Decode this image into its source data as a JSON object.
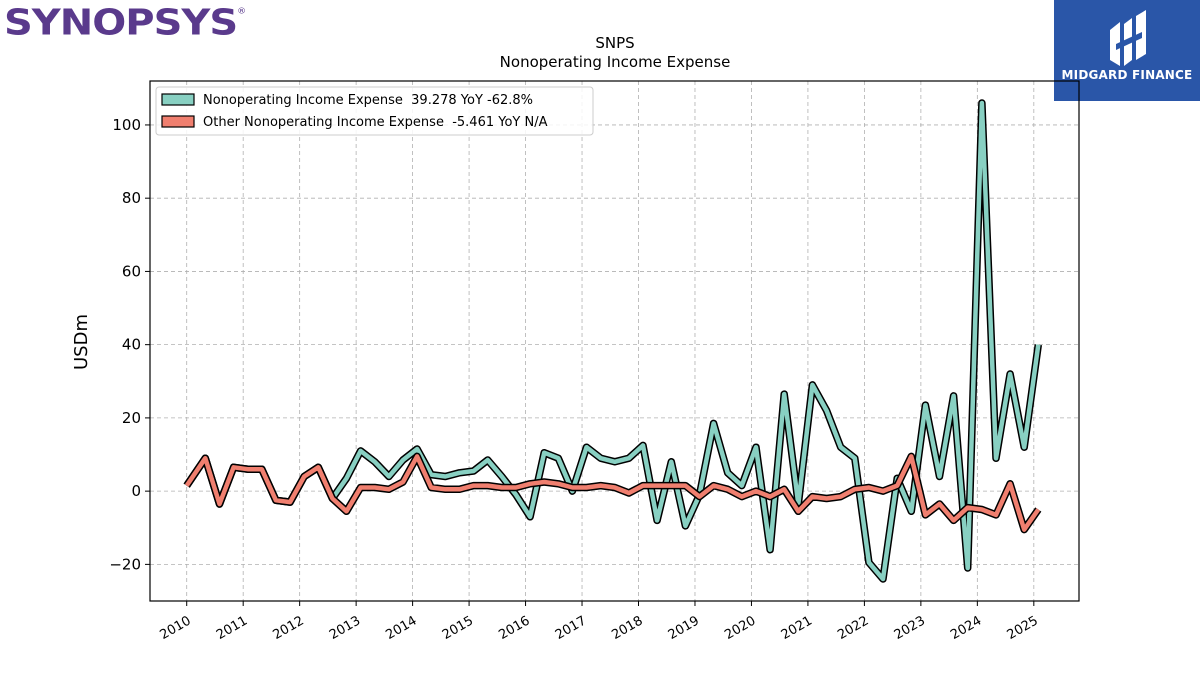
{
  "brand": {
    "left_logo": "SYNOPSYS",
    "left_logo_mark": "®",
    "right_logo": "MIDGARD FINANCE"
  },
  "chart_data": {
    "type": "line",
    "title": "SNPS",
    "subtitle": "Nonoperating Income Expense",
    "ylabel": "USDm",
    "xlabel": "",
    "ylim": [
      -30,
      112
    ],
    "xlim": [
      2009.35,
      2025.8
    ],
    "yticks": [
      -20,
      0,
      20,
      40,
      60,
      80,
      100
    ],
    "ytick_labels": [
      "−20",
      "0",
      "20",
      "40",
      "60",
      "80",
      "100"
    ],
    "xticks": [
      2010,
      2011,
      2012,
      2013,
      2014,
      2015,
      2016,
      2017,
      2018,
      2019,
      2020,
      2021,
      2022,
      2023,
      2024,
      2025
    ],
    "xtick_labels": [
      "2010",
      "2011",
      "2012",
      "2013",
      "2014",
      "2015",
      "2016",
      "2017",
      "2018",
      "2019",
      "2020",
      "2021",
      "2022",
      "2023",
      "2024",
      "2025"
    ],
    "grid": true,
    "legend_position": "top-left",
    "x": [
      2010.0,
      2010.33,
      2010.58,
      2010.83,
      2011.08,
      2011.33,
      2011.58,
      2011.83,
      2012.08,
      2012.33,
      2012.58,
      2012.83,
      2013.08,
      2013.33,
      2013.58,
      2013.83,
      2014.08,
      2014.33,
      2014.58,
      2014.83,
      2015.08,
      2015.33,
      2015.58,
      2015.83,
      2016.08,
      2016.33,
      2016.58,
      2016.83,
      2017.08,
      2017.33,
      2017.58,
      2017.83,
      2018.08,
      2018.33,
      2018.58,
      2018.83,
      2019.08,
      2019.33,
      2019.58,
      2019.83,
      2020.08,
      2020.33,
      2020.58,
      2020.83,
      2021.08,
      2021.33,
      2021.58,
      2021.83,
      2022.08,
      2022.33,
      2022.58,
      2022.83,
      2023.08,
      2023.33,
      2023.58,
      2023.83,
      2024.08,
      2024.33,
      2024.58,
      2024.83,
      2025.08
    ],
    "series": [
      {
        "name": "Nonoperating Income Expense  39.278 YoY -62.8%",
        "color": "#88d0c2",
        "values": [
          1.5,
          9.0,
          -3.5,
          6.5,
          6.0,
          6.0,
          -2.5,
          -3.0,
          4.0,
          6.5,
          -2.0,
          3.5,
          11.0,
          8.0,
          4.0,
          8.5,
          11.5,
          4.5,
          4.0,
          5.0,
          5.5,
          8.5,
          4.0,
          -1.0,
          -7.0,
          10.5,
          9.0,
          0.0,
          12.0,
          9.0,
          8.0,
          9.0,
          12.5,
          -8.0,
          8.0,
          -9.5,
          -1.0,
          18.5,
          5.0,
          1.5,
          12.0,
          -16.0,
          26.5,
          -3.5,
          29.0,
          22.0,
          12.0,
          9.0,
          -19.5,
          -24.0,
          3.5,
          -5.5,
          23.5,
          4.0,
          26.0,
          -21.0,
          106.0,
          9.0,
          32.0,
          12.0,
          40.0
        ]
      },
      {
        "name": "Other Nonoperating Income Expense  -5.461 YoY N/A",
        "color": "#f07f6f",
        "values": [
          1.5,
          9.0,
          -3.5,
          6.5,
          6.0,
          6.0,
          -2.5,
          -3.0,
          4.0,
          6.5,
          -2.0,
          -5.5,
          1.0,
          1.0,
          0.5,
          2.5,
          9.5,
          1.0,
          0.5,
          0.5,
          1.5,
          1.5,
          1.0,
          1.0,
          2.0,
          2.5,
          2.0,
          1.0,
          1.0,
          1.5,
          1.0,
          -0.5,
          1.5,
          1.5,
          1.5,
          1.5,
          -1.5,
          1.5,
          0.5,
          -1.5,
          0.0,
          -1.5,
          0.5,
          -5.5,
          -1.5,
          -2.0,
          -1.5,
          0.5,
          1.0,
          0.0,
          1.5,
          9.5,
          -6.5,
          -3.5,
          -8.0,
          -4.5,
          -5.0,
          -6.5,
          2.0,
          -10.5,
          -5.0
        ]
      }
    ]
  }
}
